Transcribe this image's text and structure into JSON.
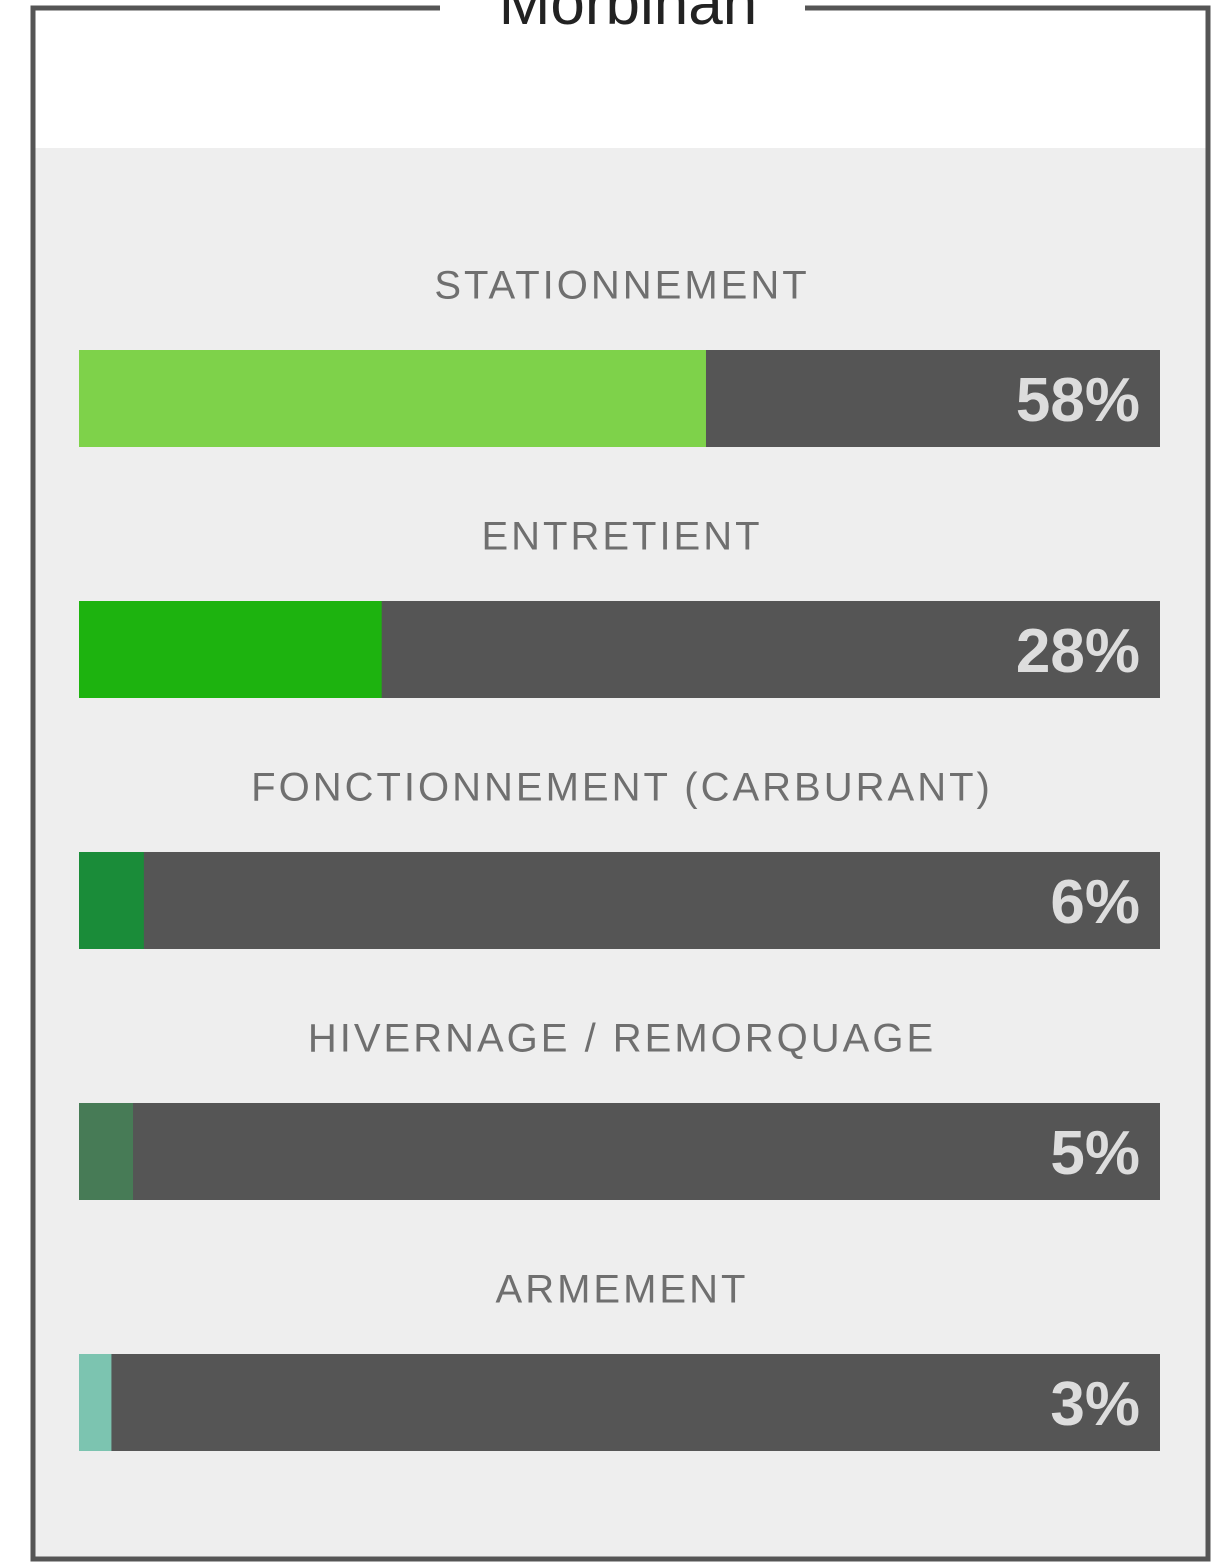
{
  "chart_data": {
    "type": "bar",
    "orientation": "horizontal",
    "title": "Morbihan",
    "categories": [
      "STATIONNEMENT",
      "ENTRETIENT",
      "FONCTIONNEMENT (CARBURANT)",
      "HIVERNAGE / REMORQUAGE",
      "ARMEMENT"
    ],
    "values": [
      58,
      28,
      6,
      5,
      3
    ],
    "value_labels": [
      "58%",
      "28%",
      "6%",
      "5%",
      "3%"
    ],
    "colors": [
      "#7ed24a",
      "#1db30f",
      "#1a8c39",
      "#477b56",
      "#7cc4b0"
    ],
    "xlim": [
      0,
      100
    ]
  }
}
